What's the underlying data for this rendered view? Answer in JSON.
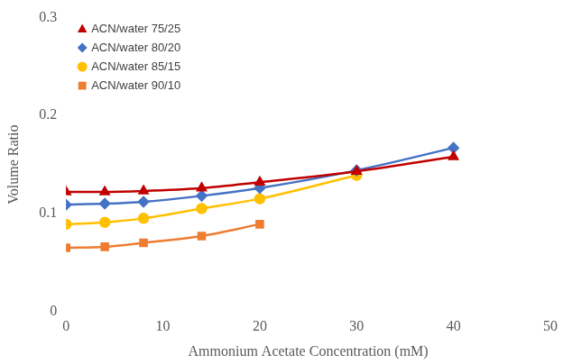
{
  "chart_data": {
    "type": "line",
    "x_label": "Ammonium Acetate Concentration (mM)",
    "y_label": "Volume Ratio",
    "xlim": [
      0,
      50
    ],
    "xticks": [
      0,
      10,
      20,
      30,
      40,
      50
    ],
    "ylim": [
      0,
      0.3
    ],
    "yticks": [
      0,
      0.1,
      0.2,
      0.3
    ],
    "grid": false,
    "legend": "upper left",
    "series": [
      {
        "name": "ACN/water 75/25",
        "color": "#C00000",
        "marker": "triangle",
        "line_style": "solid",
        "x": [
          0,
          4,
          8,
          14,
          20,
          30,
          40
        ],
        "values": [
          0.122,
          0.122,
          0.123,
          0.126,
          0.132,
          0.143,
          0.158
        ]
      },
      {
        "name": "ACN/water 80/20",
        "color": "#4472C4",
        "marker": "diamond",
        "line_style": "solid",
        "x": [
          0,
          4,
          8,
          14,
          20,
          30,
          40
        ],
        "values": [
          0.109,
          0.11,
          0.112,
          0.118,
          0.126,
          0.144,
          0.167
        ]
      },
      {
        "name": "ACN/water 85/15",
        "color": "#FFC000",
        "marker": "circle",
        "line_style": "solid",
        "x": [
          0,
          4,
          8,
          14,
          20,
          30
        ],
        "values": [
          0.089,
          0.091,
          0.095,
          0.105,
          0.115,
          0.139
        ]
      },
      {
        "name": "ACN/water 90/10",
        "color": "#ED7D31",
        "marker": "square",
        "line_style": "solid",
        "x": [
          0,
          4,
          8,
          14,
          20
        ],
        "values": [
          0.065,
          0.066,
          0.07,
          0.077,
          0.089
        ]
      }
    ]
  }
}
